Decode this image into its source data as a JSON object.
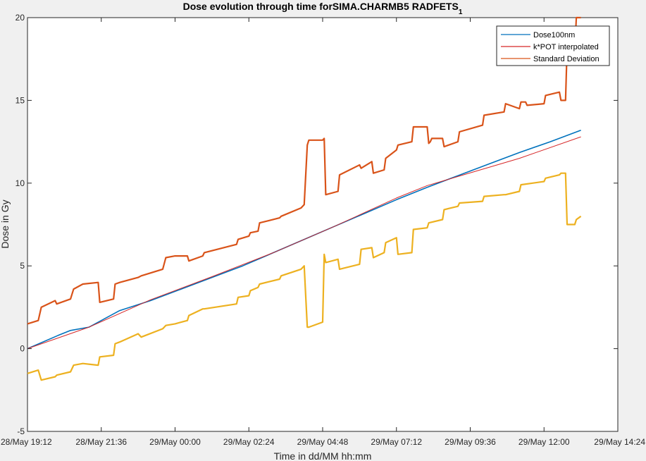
{
  "chart_data": {
    "type": "line",
    "title": "Dose evolution through time forSIMA.CHARMB5 RADFETS",
    "title_subscript": "1",
    "xlabel": "Time in dd/MM hh:mm",
    "ylabel": "Dose in Gy",
    "xlim_hours": [
      0,
      19.2
    ],
    "ylim": [
      -5,
      20
    ],
    "x_ticks": [
      {
        "h": 0,
        "label": "28/May 19:12"
      },
      {
        "h": 2.4,
        "label": "28/May 21:36"
      },
      {
        "h": 4.8,
        "label": "29/May 00:00"
      },
      {
        "h": 7.2,
        "label": "29/May 02:24"
      },
      {
        "h": 9.6,
        "label": "29/May 04:48"
      },
      {
        "h": 12.0,
        "label": "29/May 07:12"
      },
      {
        "h": 14.4,
        "label": "29/May 09:36"
      },
      {
        "h": 16.8,
        "label": "29/May 12:00"
      },
      {
        "h": 19.2,
        "label": "29/May 14:24"
      }
    ],
    "y_ticks": [
      -5,
      0,
      5,
      10,
      15,
      20
    ],
    "grid": false,
    "legend_position": "top-right",
    "colors": {
      "dose": "#0072bd",
      "pot": "#d62728",
      "upper": "#d95319",
      "lower": "#edb120"
    },
    "series": [
      {
        "name": "Dose100nm",
        "key": "dose",
        "x_hours": [
          0,
          1.0,
          1.4,
          2.0,
          3.0,
          4.0,
          5.0,
          6.0,
          7.0,
          8.0,
          9.0,
          10.0,
          11.0,
          12.0,
          13.0,
          14.0,
          15.0,
          16.0,
          17.0,
          18.0
        ],
        "values": [
          0,
          0.8,
          1.1,
          1.3,
          2.3,
          2.9,
          3.6,
          4.3,
          5.0,
          5.8,
          6.6,
          7.4,
          8.2,
          9.0,
          9.75,
          10.45,
          11.15,
          11.85,
          12.5,
          13.2
        ]
      },
      {
        "name": "k*POT interpolated",
        "key": "pot",
        "x_hours": [
          0,
          2.0,
          4.0,
          6.0,
          8.0,
          10.0,
          12.0,
          13.0,
          14.0,
          16.0,
          18.0
        ],
        "values": [
          0,
          1.3,
          2.95,
          4.35,
          5.8,
          7.4,
          9.1,
          9.85,
          10.4,
          11.5,
          12.8
        ]
      },
      {
        "name": "Standard Deviation",
        "key": "upper",
        "x_hours": [
          0,
          0.35,
          0.45,
          0.9,
          0.95,
          1.4,
          1.5,
          1.8,
          2.3,
          2.35,
          2.8,
          2.85,
          3.0,
          3.6,
          3.7,
          4.4,
          4.5,
          4.8,
          5.2,
          5.25,
          5.7,
          5.75,
          6.8,
          6.85,
          7.2,
          7.25,
          7.5,
          7.55,
          8.2,
          8.25,
          8.9,
          9.0,
          9.1,
          9.15,
          9.6,
          9.65,
          9.7,
          10.1,
          10.15,
          10.8,
          10.85,
          11.2,
          11.25,
          11.6,
          11.65,
          12.0,
          12.05,
          12.5,
          12.55,
          13.0,
          13.05,
          13.1,
          13.15,
          13.5,
          13.55,
          14.0,
          14.05,
          14.8,
          14.85,
          15.5,
          15.55,
          16.0,
          16.05,
          16.2,
          16.25,
          16.8,
          16.85,
          17.3,
          17.35,
          17.5,
          17.55,
          17.8,
          17.85,
          18.0
        ],
        "values": [
          1.5,
          1.7,
          2.5,
          2.9,
          2.7,
          3.0,
          3.6,
          3.9,
          4.0,
          2.8,
          3.0,
          3.9,
          4.0,
          4.3,
          4.4,
          4.8,
          5.5,
          5.6,
          5.6,
          5.3,
          5.6,
          5.8,
          6.3,
          6.6,
          6.8,
          7.0,
          7.1,
          7.6,
          7.9,
          8.0,
          8.5,
          8.7,
          12.3,
          12.6,
          12.6,
          12.7,
          9.3,
          9.5,
          10.5,
          11.1,
          10.9,
          11.3,
          10.6,
          10.8,
          11.5,
          12.0,
          12.3,
          12.5,
          13.4,
          13.4,
          12.4,
          12.5,
          12.7,
          12.7,
          12.2,
          12.5,
          13.1,
          13.5,
          14.1,
          14.3,
          14.8,
          14.5,
          14.9,
          14.9,
          14.7,
          14.8,
          15.3,
          15.5,
          15.0,
          15.0,
          18.2,
          18.0,
          20,
          20
        ]
      },
      {
        "name": "",
        "key": "lower",
        "x_hours": [
          0,
          0.35,
          0.45,
          0.9,
          0.95,
          1.4,
          1.5,
          1.8,
          2.3,
          2.35,
          2.8,
          2.85,
          3.0,
          3.6,
          3.7,
          4.4,
          4.5,
          4.8,
          5.2,
          5.25,
          5.7,
          5.75,
          6.8,
          6.85,
          7.2,
          7.25,
          7.5,
          7.55,
          8.2,
          8.25,
          8.9,
          9.0,
          9.1,
          9.15,
          9.6,
          9.65,
          9.7,
          10.1,
          10.15,
          10.8,
          10.85,
          11.2,
          11.25,
          11.6,
          11.65,
          12.0,
          12.05,
          12.5,
          12.55,
          13.0,
          13.05,
          13.5,
          13.55,
          14.0,
          14.05,
          14.8,
          14.85,
          15.5,
          15.55,
          16.0,
          16.05,
          16.8,
          16.85,
          17.3,
          17.35,
          17.5,
          17.55,
          17.8,
          17.85,
          18.0
        ],
        "values": [
          -1.5,
          -1.3,
          -1.9,
          -1.7,
          -1.6,
          -1.4,
          -1.0,
          -0.9,
          -1.0,
          -0.5,
          -0.4,
          0.3,
          0.4,
          0.9,
          0.7,
          1.2,
          1.4,
          1.5,
          1.7,
          2.0,
          2.4,
          2.4,
          2.7,
          3.1,
          3.2,
          3.5,
          3.7,
          3.9,
          4.2,
          4.4,
          4.8,
          5.0,
          1.3,
          1.3,
          1.6,
          5.7,
          5.2,
          5.4,
          4.8,
          5.1,
          6.0,
          6.1,
          5.5,
          5.8,
          6.4,
          6.7,
          5.7,
          5.8,
          7.2,
          7.3,
          7.6,
          7.8,
          8.4,
          8.6,
          8.8,
          8.9,
          9.2,
          9.3,
          9.3,
          9.5,
          9.9,
          10.1,
          10.3,
          10.5,
          10.6,
          10.6,
          7.5,
          7.5,
          7.8,
          8.0
        ]
      }
    ]
  }
}
